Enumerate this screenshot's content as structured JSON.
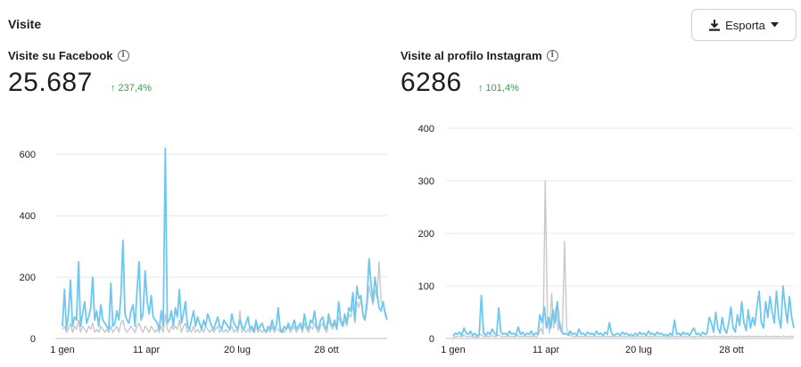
{
  "section": {
    "title": "Visite"
  },
  "export_button": {
    "label": "Esporta",
    "icon": "download-icon",
    "caret": "chevron-down-icon"
  },
  "colors": {
    "series_current": "#6cc8f0",
    "series_previous": "#c6c9cc",
    "delta_up": "#31a24c",
    "grid": "#e6e8eb"
  },
  "panels": [
    {
      "title": "Visite su Facebook",
      "value": "25.687",
      "delta": "↑ 237,4%"
    },
    {
      "title": "Visite al profilo Instagram",
      "value": "6286",
      "delta": "↑ 101,4%"
    }
  ],
  "chart_data": [
    {
      "type": "line",
      "x_ticks": [
        "1 gen",
        "11 apr",
        "20 lug",
        "28 ott"
      ],
      "y_ticks": [
        0,
        200,
        400,
        600
      ],
      "ylim": [
        0,
        650
      ],
      "grid": true,
      "series": [
        {
          "values": [
            40,
            160,
            30,
            80,
            190,
            40,
            70,
            60,
            250,
            40,
            80,
            120,
            50,
            70,
            100,
            200,
            60,
            90,
            40,
            110,
            60,
            50,
            40,
            30,
            180,
            40,
            50,
            90,
            60,
            140,
            320,
            80,
            60,
            50,
            90,
            110,
            40,
            160,
            250,
            60,
            80,
            220,
            120,
            80,
            140,
            70,
            60,
            50,
            30,
            90,
            40,
            620,
            50,
            60,
            90,
            40,
            100,
            70,
            160,
            50,
            80,
            120,
            40,
            30,
            60,
            90,
            40,
            70,
            50,
            30,
            60,
            40,
            80,
            60,
            40,
            30,
            50,
            70,
            40,
            30,
            60,
            50,
            40,
            30,
            80,
            50,
            40,
            30,
            60,
            40,
            30,
            50,
            70,
            30,
            40,
            20,
            60,
            30,
            40,
            50,
            30,
            20,
            40,
            30,
            60,
            30,
            40,
            100,
            30,
            20,
            40,
            30,
            50,
            30,
            40,
            60,
            30,
            40,
            50,
            30,
            80,
            40,
            30,
            60,
            50,
            90,
            40,
            30,
            60,
            70,
            40,
            30,
            80,
            50,
            40,
            60,
            30,
            120,
            60,
            40,
            80,
            50,
            100,
            90,
            150,
            60,
            170,
            130,
            140,
            80,
            60,
            120,
            260,
            180,
            120,
            200,
            150,
            100,
            90,
            120,
            80,
            60
          ]
        },
        {
          "values": [
            30,
            40,
            20,
            30,
            50,
            20,
            40,
            30,
            60,
            20,
            40,
            30,
            20,
            40,
            30,
            50,
            20,
            30,
            20,
            40,
            30,
            20,
            30,
            20,
            40,
            20,
            30,
            40,
            20,
            50,
            60,
            30,
            20,
            30,
            40,
            30,
            20,
            40,
            50,
            30,
            20,
            40,
            30,
            20,
            40,
            30,
            20,
            30,
            20,
            40,
            20,
            80,
            30,
            20,
            40,
            30,
            40,
            30,
            60,
            20,
            40,
            50,
            20,
            30,
            20,
            40,
            20,
            30,
            20,
            30,
            20,
            40,
            30,
            20,
            30,
            20,
            30,
            40,
            20,
            30,
            20,
            30,
            20,
            30,
            40,
            20,
            30,
            20,
            90,
            20,
            30,
            20,
            30,
            20,
            30,
            20,
            40,
            20,
            30,
            20,
            30,
            20,
            30,
            20,
            40,
            20,
            30,
            30,
            20,
            30,
            20,
            30,
            40,
            20,
            30,
            40,
            20,
            30,
            40,
            20,
            50,
            30,
            20,
            40,
            30,
            50,
            30,
            20,
            40,
            50,
            30,
            20,
            60,
            40,
            30,
            50,
            30,
            70,
            50,
            40,
            60,
            40,
            80,
            70,
            110,
            50,
            120,
            100,
            130,
            70,
            60,
            100,
            170,
            140,
            110,
            160,
            130,
            250,
            120,
            110,
            90,
            70
          ]
        }
      ]
    },
    {
      "type": "line",
      "x_ticks": [
        "1 gen",
        "11 apr",
        "20 lug",
        "28 ott"
      ],
      "y_ticks": [
        0,
        100,
        200,
        300,
        400
      ],
      "ylim": [
        0,
        400
      ],
      "grid": true,
      "series": [
        {
          "values": [
            5,
            10,
            8,
            12,
            6,
            20,
            10,
            8,
            14,
            6,
            10,
            5,
            8,
            82,
            10,
            6,
            12,
            8,
            18,
            10,
            6,
            58,
            12,
            8,
            10,
            6,
            14,
            8,
            10,
            6,
            22,
            8,
            12,
            6,
            10,
            8,
            14,
            6,
            10,
            8,
            45,
            30,
            60,
            20,
            40,
            20,
            55,
            30,
            70,
            25,
            12,
            8,
            10,
            6,
            14,
            8,
            10,
            6,
            18,
            8,
            10,
            6,
            12,
            8,
            10,
            6,
            14,
            8,
            10,
            6,
            12,
            8,
            30,
            10,
            6,
            8,
            10,
            6,
            12,
            8,
            10,
            6,
            8,
            5,
            10,
            6,
            12,
            8,
            10,
            6,
            14,
            8,
            10,
            6,
            12,
            8,
            10,
            6,
            8,
            5,
            10,
            6,
            35,
            8,
            10,
            6,
            12,
            8,
            10,
            6,
            14,
            20,
            8,
            10,
            6,
            12,
            8,
            10,
            40,
            30,
            12,
            50,
            20,
            10,
            40,
            18,
            10,
            30,
            60,
            20,
            12,
            45,
            25,
            70,
            30,
            15,
            55,
            20,
            40,
            25,
            60,
            90,
            30,
            20,
            70,
            40,
            80,
            50,
            30,
            90,
            40,
            20,
            100,
            60,
            30,
            80,
            40,
            20
          ]
        },
        {
          "values": [
            2,
            4,
            3,
            5,
            3,
            6,
            4,
            3,
            5,
            3,
            4,
            2,
            3,
            8,
            4,
            3,
            5,
            3,
            6,
            4,
            3,
            7,
            5,
            3,
            4,
            3,
            5,
            3,
            4,
            3,
            6,
            3,
            5,
            3,
            4,
            3,
            5,
            3,
            4,
            3,
            10,
            20,
            8,
            300,
            40,
            10,
            85,
            20,
            60,
            15,
            30,
            10,
            185,
            20,
            8,
            5,
            4,
            3,
            5,
            3,
            4,
            3,
            5,
            3,
            4,
            3,
            5,
            3,
            4,
            3,
            5,
            3,
            4,
            3,
            5,
            3,
            4,
            3,
            5,
            3,
            4,
            3,
            5,
            3,
            4,
            3,
            5,
            3,
            4,
            3,
            5,
            3,
            4,
            3,
            5,
            3,
            4,
            3,
            5,
            3,
            4,
            3,
            5,
            3,
            4,
            3,
            5,
            3,
            4,
            3,
            5,
            3,
            4,
            3,
            5,
            3,
            4,
            3,
            5,
            3,
            4,
            3,
            5,
            3,
            4,
            3,
            5,
            3,
            4,
            3,
            5,
            3,
            4,
            3,
            5,
            3,
            4,
            3,
            5,
            3,
            4,
            3,
            5,
            3,
            4,
            3,
            5,
            3,
            4,
            3,
            5,
            3,
            4,
            3,
            5,
            3,
            4,
            3,
            5,
            3
          ]
        }
      ]
    }
  ]
}
